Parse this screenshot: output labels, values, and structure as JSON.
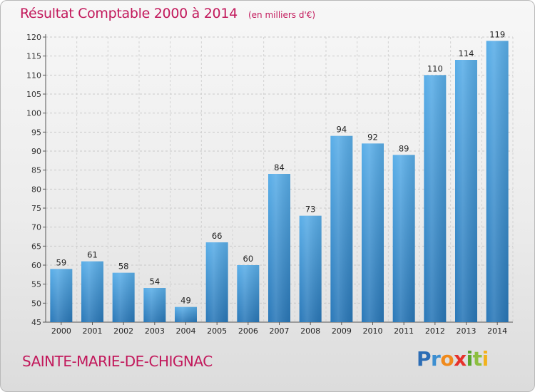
{
  "header": {
    "title": "Résultat Comptable 2000 à 2014",
    "unit_note": "(en milliers d'€)"
  },
  "footer": {
    "place": "SAINTE-MARIE-DE-CHIGNAC",
    "logo_letters": [
      "P",
      "r",
      "o",
      "x",
      "i",
      "t",
      "i"
    ]
  },
  "colors": {
    "title": "#c2185b",
    "bar_light": "#5aaee8",
    "bar_dark": "#2a78b8"
  },
  "chart_data": {
    "type": "bar",
    "title": "Résultat Comptable 2000 à 2014",
    "subtitle": "(en milliers d'€)",
    "xlabel": "",
    "ylabel": "",
    "categories": [
      "2000",
      "2001",
      "2002",
      "2003",
      "2004",
      "2005",
      "2006",
      "2007",
      "2008",
      "2009",
      "2010",
      "2011",
      "2012",
      "2013",
      "2014"
    ],
    "values": [
      59,
      61,
      58,
      54,
      49,
      66,
      60,
      84,
      73,
      94,
      92,
      89,
      110,
      114,
      119
    ],
    "ylim": [
      45,
      120
    ],
    "yticks": [
      45,
      50,
      55,
      60,
      65,
      70,
      75,
      80,
      85,
      90,
      95,
      100,
      105,
      110,
      115,
      120
    ],
    "grid": true,
    "data_labels": true
  }
}
